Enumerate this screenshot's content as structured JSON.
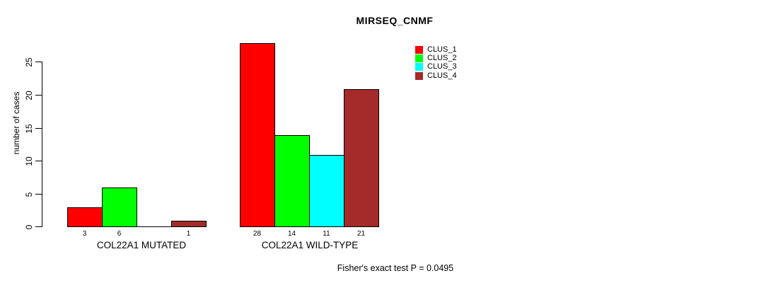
{
  "chart": {
    "title": "MIRSEQ_CNMF",
    "ylabel": "number of cases",
    "annotation": "Fisher's exact test P = 0.0495"
  },
  "chart_data": {
    "type": "bar",
    "title": "MIRSEQ_CNMF",
    "xlabel": "",
    "ylabel": "number of cases",
    "categories": [
      "COL22A1 MUTATED",
      "COL22A1 WILD-TYPE"
    ],
    "series": [
      {
        "name": "CLUS_1",
        "color": "#ff0000",
        "values": [
          3,
          28
        ]
      },
      {
        "name": "CLUS_2",
        "color": "#00ff00",
        "values": [
          6,
          14
        ]
      },
      {
        "name": "CLUS_3",
        "color": "#00ffff",
        "values": [
          0,
          11
        ]
      },
      {
        "name": "CLUS_4",
        "color": "#a52a2a",
        "values": [
          1,
          21
        ]
      }
    ],
    "bar_labels": [
      [
        "3",
        "6",
        "",
        "1"
      ],
      [
        "28",
        "14",
        "11",
        "21"
      ]
    ],
    "yticks": [
      0,
      5,
      10,
      15,
      20,
      25
    ],
    "ylim": [
      0,
      28
    ],
    "grid": false,
    "legend_position": "top-right",
    "legend": [
      "CLUS_1",
      "CLUS_2",
      "CLUS_3",
      "CLUS_4"
    ],
    "annotation": "Fisher's exact test P = 0.0495",
    "bar_outline_color": "#000000",
    "background_color": "#ffffff"
  }
}
